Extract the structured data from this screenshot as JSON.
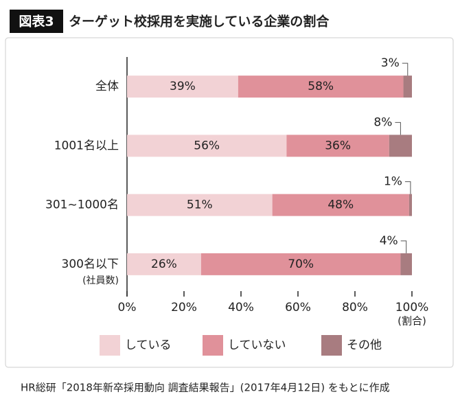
{
  "chart_data": {
    "type": "stacked-bar-horizontal",
    "badge": "図表3",
    "title": "ターゲット校採用を実施している企業の割合",
    "categories": [
      "全体",
      "1001名以上",
      "301~1000名",
      "300名以下"
    ],
    "category_note": "(社員数)",
    "series": [
      {
        "name": "している",
        "color": "#f2d2d5",
        "values": [
          39,
          56,
          51,
          26
        ],
        "value_labels": [
          "39%",
          "56%",
          "51%",
          "26%"
        ]
      },
      {
        "name": "していない",
        "color": "#e0919a",
        "values": [
          58,
          36,
          48,
          70
        ],
        "value_labels": [
          "58%",
          "36%",
          "48%",
          "70%"
        ]
      },
      {
        "name": "その他",
        "color": "#a87c80",
        "values": [
          3,
          8,
          1,
          4
        ],
        "value_labels": [
          "3%",
          "8%",
          "1%",
          "4%"
        ]
      }
    ],
    "xlim": [
      0,
      100
    ],
    "xticks": [
      {
        "value": 0,
        "label": "0%"
      },
      {
        "value": 20,
        "label": "20%"
      },
      {
        "value": 40,
        "label": "40%"
      },
      {
        "value": 60,
        "label": "60%"
      },
      {
        "value": 80,
        "label": "80%"
      },
      {
        "value": 100,
        "label": "100%"
      }
    ],
    "x_label": "(割合)",
    "source": "HR総研「2018年新卒採用動向 調査結果報告」(2017年4月12日) をもとに作成"
  }
}
